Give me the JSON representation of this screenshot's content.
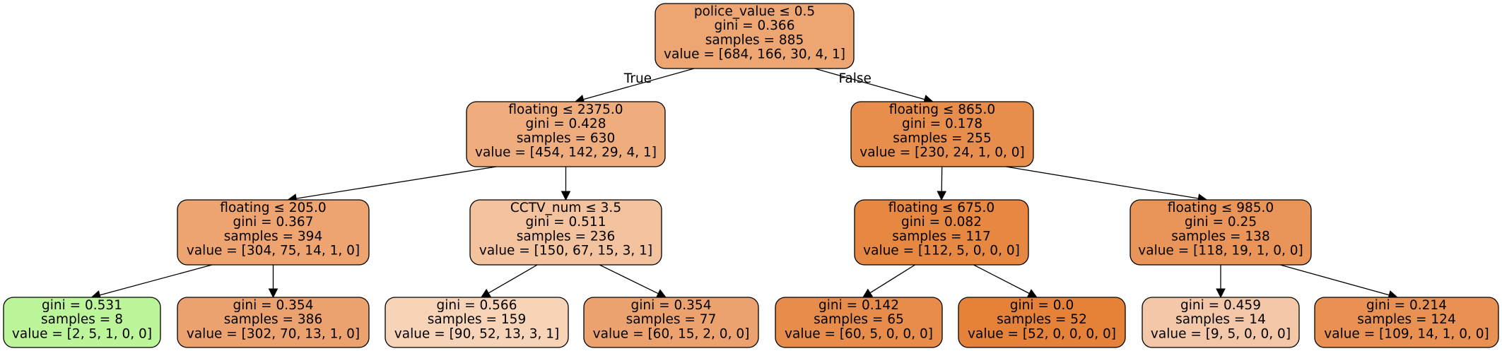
{
  "tree": {
    "nodes": [
      {
        "id": "n0",
        "lines": [
          "police_value ≤ 0.5",
          "gini = 0.366",
          "samples = 885",
          "value = [684, 166, 30, 4, 1]"
        ],
        "fill": "#eda572"
      },
      {
        "id": "n1",
        "lines": [
          "floating ≤ 2375.0",
          "gini = 0.428",
          "samples = 630",
          "value = [454, 142, 29, 4, 1]"
        ],
        "fill": "#efad7e"
      },
      {
        "id": "n2",
        "lines": [
          "floating ≤ 865.0",
          "gini = 0.178",
          "samples = 255",
          "value = [230, 24, 1, 0, 0]"
        ],
        "fill": "#e88e4d"
      },
      {
        "id": "n3",
        "lines": [
          "floating ≤ 205.0",
          "gini = 0.367",
          "samples = 394",
          "value = [304, 75, 14, 1, 0]"
        ],
        "fill": "#eda470"
      },
      {
        "id": "n4",
        "lines": [
          "CCTV_num ≤ 3.5",
          "gini = 0.511",
          "samples = 236",
          "value = [150, 67, 15, 3, 1]"
        ],
        "fill": "#f3c29e"
      },
      {
        "id": "n5",
        "lines": [
          "floating ≤ 675.0",
          "gini = 0.082",
          "samples = 117",
          "value = [112, 5, 0, 0, 0]"
        ],
        "fill": "#e68742"
      },
      {
        "id": "n6",
        "lines": [
          "floating ≤ 985.0",
          "gini = 0.25",
          "samples = 138",
          "value = [118, 19, 1, 0, 0]"
        ],
        "fill": "#e99559"
      },
      {
        "id": "n7",
        "lines": [
          "gini = 0.531",
          "samples = 8",
          "value = [2, 5, 1, 0, 0]"
        ],
        "fill": "#bcf59a"
      },
      {
        "id": "n8",
        "lines": [
          "gini = 0.354",
          "samples = 386",
          "value = [302, 70, 13, 1, 0]"
        ],
        "fill": "#eca26e"
      },
      {
        "id": "n9",
        "lines": [
          "gini = 0.566",
          "samples = 159",
          "value = [90, 52, 13, 3, 1]"
        ],
        "fill": "#f7d3b8"
      },
      {
        "id": "n10",
        "lines": [
          "gini = 0.354",
          "samples = 77",
          "value = [60, 15, 2, 0, 0]"
        ],
        "fill": "#eca26e"
      },
      {
        "id": "n11",
        "lines": [
          "gini = 0.142",
          "samples = 65",
          "value = [60, 5, 0, 0, 0]"
        ],
        "fill": "#e78c4a"
      },
      {
        "id": "n12",
        "lines": [
          "gini = 0.0",
          "samples = 52",
          "value = [52, 0, 0, 0, 0]"
        ],
        "fill": "#e58139"
      },
      {
        "id": "n13",
        "lines": [
          "gini = 0.459",
          "samples = 14",
          "value = [9, 5, 0, 0, 0]"
        ],
        "fill": "#f3c7a7"
      },
      {
        "id": "n14",
        "lines": [
          "gini = 0.214",
          "samples = 124",
          "value = [109, 14, 1, 0, 0]"
        ],
        "fill": "#e89152"
      }
    ],
    "edges": [
      {
        "from": "n0",
        "to": "n1",
        "label": "True"
      },
      {
        "from": "n0",
        "to": "n2",
        "label": "False"
      },
      {
        "from": "n1",
        "to": "n3",
        "label": ""
      },
      {
        "from": "n1",
        "to": "n4",
        "label": ""
      },
      {
        "from": "n2",
        "to": "n5",
        "label": ""
      },
      {
        "from": "n2",
        "to": "n6",
        "label": ""
      },
      {
        "from": "n3",
        "to": "n7",
        "label": ""
      },
      {
        "from": "n3",
        "to": "n8",
        "label": ""
      },
      {
        "from": "n4",
        "to": "n9",
        "label": ""
      },
      {
        "from": "n4",
        "to": "n10",
        "label": ""
      },
      {
        "from": "n5",
        "to": "n11",
        "label": ""
      },
      {
        "from": "n5",
        "to": "n12",
        "label": ""
      },
      {
        "from": "n6",
        "to": "n13",
        "label": ""
      },
      {
        "from": "n6",
        "to": "n14",
        "label": ""
      }
    ]
  }
}
